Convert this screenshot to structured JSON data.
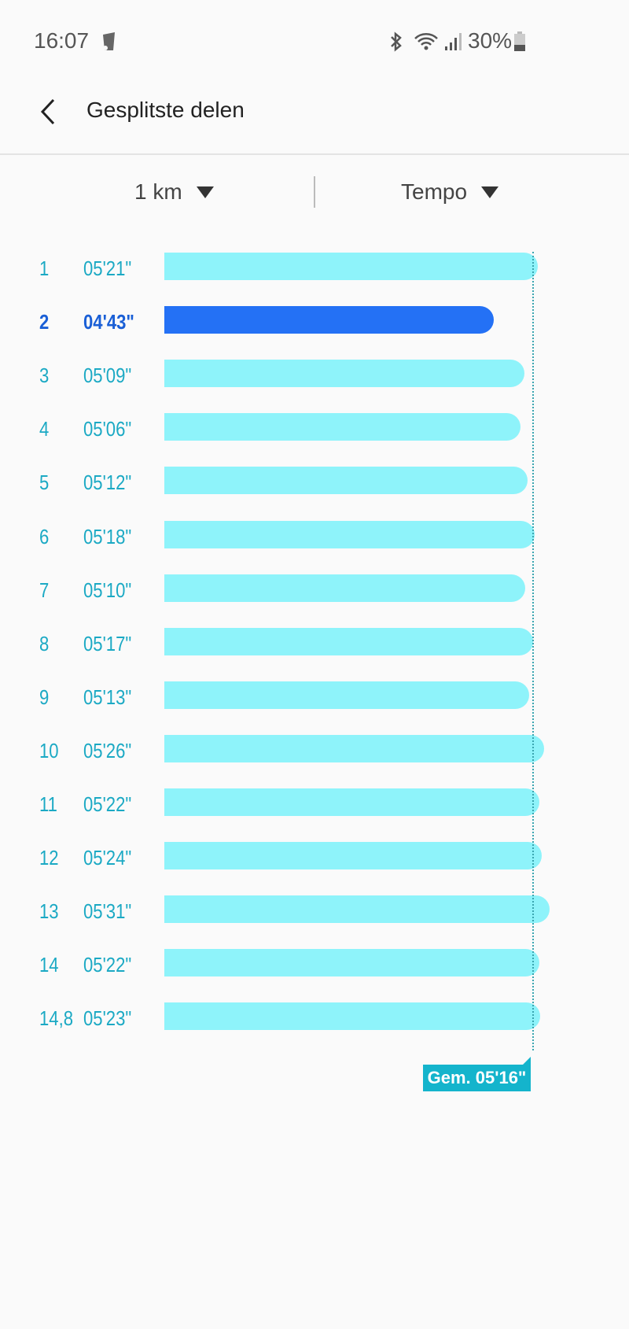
{
  "status_bar": {
    "time": "16:07",
    "battery": "30%",
    "icons": [
      "trash-notification-icon",
      "bluetooth-icon",
      "wifi-icon",
      "signal-icon",
      "battery-icon"
    ]
  },
  "header": {
    "title": "Gesplitste delen",
    "back_icon": "chevron-left-icon"
  },
  "filters": {
    "distance": "1 km",
    "metric": "Tempo"
  },
  "colors": {
    "bar": "#8ef3fa",
    "bar_selected": "#2471f5",
    "label": "#1ba9c4",
    "label_selected": "#1a5fd6",
    "average": "#14b4cc"
  },
  "chart_data": {
    "type": "bar",
    "orientation": "horizontal",
    "categories": [
      "1",
      "2",
      "3",
      "4",
      "5",
      "6",
      "7",
      "8",
      "9",
      "10",
      "11",
      "12",
      "13",
      "14",
      "14,8"
    ],
    "labels": [
      "05'21\"",
      "04'43\"",
      "05'09\"",
      "05'06\"",
      "05'12\"",
      "05'18\"",
      "05'10\"",
      "05'17\"",
      "05'13\"",
      "05'26\"",
      "05'22\"",
      "05'24\"",
      "05'31\"",
      "05'22\"",
      "05'23\""
    ],
    "values_seconds": [
      321,
      283,
      309,
      306,
      312,
      318,
      310,
      317,
      313,
      326,
      322,
      324,
      331,
      322,
      323
    ],
    "selected_index": 1,
    "average_seconds": 316,
    "average_label": "Gem. 05'16\""
  }
}
